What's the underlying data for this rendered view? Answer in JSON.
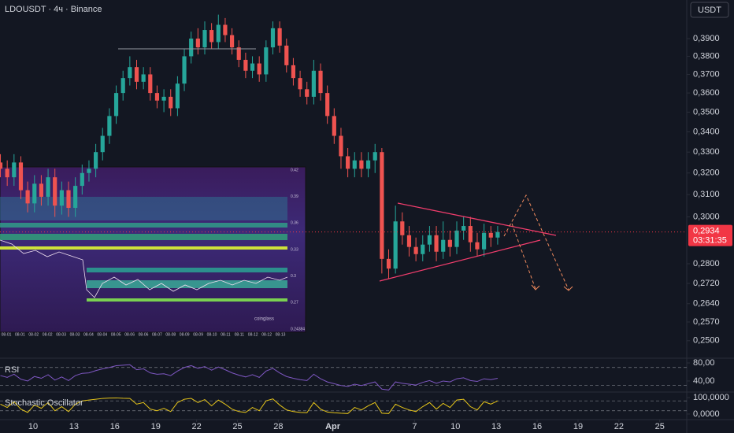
{
  "chart_data": [
    {
      "type": "candlestick",
      "title": "LDOUSDT · 4ч · Binance",
      "currency": "USDT",
      "log": true,
      "grid": false,
      "up_color": "#26a69a",
      "down_color": "#ef5350",
      "x": [
        -2.4,
        -1.9,
        -1.4,
        -0.9,
        -0.4,
        0.1,
        0.6,
        1.1,
        1.6,
        2.1,
        2.6,
        3.1,
        3.6,
        4.1,
        4.6,
        5.1,
        5.6,
        6.1,
        6.6,
        7.1,
        7.6,
        8.1,
        8.6,
        9.1,
        9.6,
        10.1,
        10.6,
        11.1,
        11.6,
        12.1,
        12.6,
        13.1,
        13.6,
        14.1,
        14.6,
        15.1,
        15.6,
        16.1,
        16.6,
        17.1,
        17.6,
        18.1,
        18.6,
        19.1,
        19.6,
        20.1,
        20.6,
        21.1,
        21.6,
        22.1,
        22.6,
        23.1,
        23.6,
        24.1,
        24.6,
        25.1,
        25.6,
        26.1,
        26.6,
        27.1,
        27.6,
        28.1,
        28.6,
        29.1,
        29.6,
        30.1,
        30.6,
        31.1,
        31.6,
        32.1,
        32.6,
        33.1,
        33.6,
        34.1
      ],
      "open": [
        0.325,
        0.322,
        0.318,
        0.325,
        0.312,
        0.306,
        0.315,
        0.309,
        0.318,
        0.305,
        0.312,
        0.304,
        0.314,
        0.32,
        0.322,
        0.33,
        0.338,
        0.348,
        0.36,
        0.368,
        0.374,
        0.366,
        0.37,
        0.36,
        0.356,
        0.358,
        0.352,
        0.365,
        0.38,
        0.39,
        0.385,
        0.395,
        0.388,
        0.398,
        0.392,
        0.385,
        0.378,
        0.372,
        0.376,
        0.37,
        0.385,
        0.396,
        0.386,
        0.375,
        0.368,
        0.362,
        0.358,
        0.372,
        0.36,
        0.348,
        0.338,
        0.328,
        0.322,
        0.326,
        0.322,
        0.326,
        0.33,
        0.282,
        0.278,
        0.298,
        0.292,
        0.287,
        0.284,
        0.288,
        0.292,
        0.285,
        0.29,
        0.287,
        0.294,
        0.296,
        0.289,
        0.286,
        0.293,
        0.291
      ],
      "high": [
        0.329,
        0.326,
        0.329,
        0.328,
        0.316,
        0.319,
        0.319,
        0.322,
        0.322,
        0.316,
        0.316,
        0.318,
        0.324,
        0.326,
        0.334,
        0.342,
        0.352,
        0.364,
        0.372,
        0.38,
        0.378,
        0.374,
        0.374,
        0.364,
        0.362,
        0.362,
        0.369,
        0.384,
        0.394,
        0.396,
        0.4,
        0.399,
        0.404,
        0.402,
        0.396,
        0.389,
        0.382,
        0.38,
        0.38,
        0.389,
        0.4,
        0.4,
        0.39,
        0.379,
        0.372,
        0.366,
        0.378,
        0.376,
        0.364,
        0.352,
        0.342,
        0.332,
        0.33,
        0.33,
        0.33,
        0.334,
        0.332,
        0.286,
        0.305,
        0.302,
        0.296,
        0.291,
        0.292,
        0.296,
        0.296,
        0.298,
        0.294,
        0.298,
        0.3,
        0.3,
        0.293,
        0.297,
        0.296,
        0.296
      ],
      "low": [
        0.318,
        0.314,
        0.314,
        0.308,
        0.302,
        0.302,
        0.305,
        0.305,
        0.3,
        0.301,
        0.3,
        0.3,
        0.31,
        0.316,
        0.318,
        0.326,
        0.334,
        0.344,
        0.356,
        0.364,
        0.362,
        0.362,
        0.356,
        0.352,
        0.35,
        0.348,
        0.348,
        0.361,
        0.376,
        0.381,
        0.381,
        0.384,
        0.384,
        0.388,
        0.381,
        0.374,
        0.368,
        0.368,
        0.366,
        0.366,
        0.381,
        0.382,
        0.371,
        0.364,
        0.358,
        0.354,
        0.354,
        0.356,
        0.344,
        0.334,
        0.322,
        0.318,
        0.318,
        0.318,
        0.318,
        0.32,
        0.276,
        0.274,
        0.276,
        0.288,
        0.283,
        0.281,
        0.281,
        0.285,
        0.281,
        0.282,
        0.283,
        0.284,
        0.29,
        0.285,
        0.283,
        0.283,
        0.287,
        0.288
      ],
      "close": [
        0.322,
        0.318,
        0.325,
        0.312,
        0.306,
        0.315,
        0.309,
        0.318,
        0.305,
        0.312,
        0.304,
        0.314,
        0.32,
        0.322,
        0.33,
        0.338,
        0.348,
        0.36,
        0.368,
        0.374,
        0.366,
        0.37,
        0.36,
        0.356,
        0.358,
        0.352,
        0.365,
        0.38,
        0.39,
        0.385,
        0.395,
        0.388,
        0.398,
        0.392,
        0.385,
        0.378,
        0.372,
        0.376,
        0.37,
        0.385,
        0.396,
        0.386,
        0.375,
        0.368,
        0.362,
        0.358,
        0.372,
        0.36,
        0.348,
        0.338,
        0.328,
        0.322,
        0.326,
        0.322,
        0.326,
        0.33,
        0.282,
        0.278,
        0.298,
        0.292,
        0.287,
        0.284,
        0.288,
        0.292,
        0.285,
        0.29,
        0.287,
        0.294,
        0.296,
        0.289,
        0.286,
        0.293,
        0.291,
        0.2934
      ],
      "xlim": [
        -2.43,
        47.98
      ],
      "xticks": [
        {
          "value": 0,
          "label": "10"
        },
        {
          "value": 3,
          "label": "13"
        },
        {
          "value": 6,
          "label": "16"
        },
        {
          "value": 9,
          "label": "19"
        },
        {
          "value": 12,
          "label": "22"
        },
        {
          "value": 15,
          "label": "25"
        },
        {
          "value": 18,
          "label": "28"
        },
        {
          "value": 22,
          "label": "Apr"
        },
        {
          "value": 28,
          "label": "7"
        },
        {
          "value": 31,
          "label": "10"
        },
        {
          "value": 34,
          "label": "13"
        },
        {
          "value": 37,
          "label": "16"
        },
        {
          "value": 40,
          "label": "19"
        },
        {
          "value": 43,
          "label": "22"
        },
        {
          "value": 46,
          "label": "25"
        }
      ],
      "ylim": [
        0.2445,
        0.4128
      ],
      "yticks": [
        {
          "value": 0.39,
          "label": "0,3900"
        },
        {
          "value": 0.38,
          "label": "0,3800"
        },
        {
          "value": 0.37,
          "label": "0,3700"
        },
        {
          "value": 0.36,
          "label": "0,3600"
        },
        {
          "value": 0.35,
          "label": "0,3500"
        },
        {
          "value": 0.34,
          "label": "0,3400"
        },
        {
          "value": 0.33,
          "label": "0,3300"
        },
        {
          "value": 0.32,
          "label": "0,3200"
        },
        {
          "value": 0.31,
          "label": "0,3100"
        },
        {
          "value": 0.3,
          "label": "0,3000"
        },
        {
          "value": 0.28,
          "label": "0,2800"
        },
        {
          "value": 0.272,
          "label": "0,2720"
        },
        {
          "value": 0.264,
          "label": "0,2640"
        },
        {
          "value": 0.257,
          "label": "0,2570"
        },
        {
          "value": 0.25,
          "label": "0,2500"
        }
      ],
      "last_price": {
        "value": 0.2934,
        "label": "0,2934"
      },
      "countdown": "03:31:35",
      "last_color": "#f23645"
    },
    {
      "type": "line",
      "title": "RSI",
      "color": "#7e57c2",
      "bands": [
        30,
        70
      ],
      "values": [
        52,
        48,
        55,
        44,
        40,
        50,
        46,
        54,
        42,
        49,
        41,
        52,
        57,
        58,
        63,
        67,
        70,
        74,
        75,
        76,
        65,
        67,
        58,
        55,
        56,
        52,
        62,
        70,
        74,
        68,
        72,
        64,
        71,
        65,
        58,
        53,
        49,
        54,
        48,
        62,
        68,
        58,
        50,
        46,
        43,
        41,
        55,
        45,
        38,
        34,
        30,
        28,
        33,
        30,
        34,
        38,
        22,
        20,
        38,
        35,
        33,
        31,
        37,
        41,
        35,
        40,
        38,
        45,
        47,
        41,
        39,
        45,
        43,
        46
      ],
      "ylim": [
        19,
        87
      ],
      "yticks": [
        {
          "value": 80,
          "label": "80,00"
        },
        {
          "value": 40,
          "label": "40,00"
        }
      ]
    },
    {
      "type": "line",
      "title": "Stochastic Oscillator",
      "color": "#e5c41a",
      "bands": [
        20,
        80
      ],
      "values": [
        60,
        40,
        75,
        30,
        10,
        55,
        35,
        70,
        20,
        45,
        15,
        60,
        80,
        85,
        90,
        95,
        97,
        98,
        96,
        95,
        60,
        70,
        30,
        20,
        35,
        15,
        70,
        90,
        95,
        70,
        88,
        50,
        85,
        60,
        30,
        15,
        10,
        40,
        20,
        80,
        92,
        55,
        25,
        15,
        10,
        8,
        70,
        30,
        12,
        8,
        5,
        3,
        40,
        25,
        50,
        70,
        5,
        3,
        60,
        40,
        25,
        15,
        45,
        70,
        30,
        65,
        40,
        85,
        90,
        45,
        25,
        75,
        60,
        80
      ],
      "ylim": [
        -29,
        124
      ],
      "yticks": [
        {
          "value": 100,
          "label": "100,0000"
        },
        {
          "value": 0,
          "label": "0,0000"
        }
      ]
    }
  ],
  "heatmap": {
    "brand": "coinglass",
    "yticks": [
      0.42,
      0.39,
      0.36,
      0.33,
      0.3,
      0.27,
      0.24384
    ],
    "xticks": [
      "08-01",
      "08-01",
      "08-02",
      "08-02",
      "08-03",
      "08-03",
      "08-04",
      "08-04",
      "08-05",
      "08-06",
      "08-06",
      "08-07",
      "08-08",
      "08-09",
      "08-09",
      "08-10",
      "08-11",
      "08-11",
      "08-12",
      "08-12",
      "08-13"
    ]
  }
}
